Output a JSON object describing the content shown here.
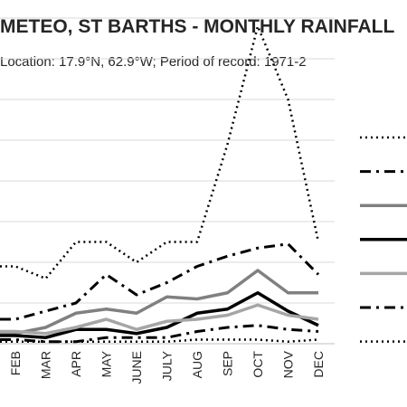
{
  "title": "METEO, ST BARTHS - MONTHLY RAINFALL",
  "subtitle": "Location: 17.9°N, 62.9°W; Period of record: 1971-2",
  "chart_data": {
    "type": "line",
    "categories": [
      "FEB",
      "MAR",
      "APR",
      "MAY",
      "JUNE",
      "JULY",
      "AUG",
      "SEP",
      "OCT",
      "NOV",
      "DEC"
    ],
    "grid": true,
    "series": [
      {
        "style": "dotted",
        "color": "#000000",
        "values": [
          190,
          160,
          250,
          250,
          200,
          250,
          250,
          490,
          780,
          600,
          250
        ]
      },
      {
        "style": "dash-dot",
        "color": "#000000",
        "values": [
          60,
          80,
          100,
          170,
          120,
          150,
          190,
          215,
          235,
          245,
          170
        ]
      },
      {
        "style": "solid",
        "color": "#808080",
        "values": [
          25,
          40,
          75,
          85,
          75,
          115,
          110,
          125,
          180,
          125,
          125
        ]
      },
      {
        "style": "solid-bold",
        "color": "#000000",
        "values": [
          20,
          15,
          35,
          35,
          25,
          40,
          75,
          85,
          125,
          80,
          45
        ]
      },
      {
        "style": "solid",
        "color": "#a6a6a6",
        "values": [
          30,
          25,
          40,
          60,
          35,
          55,
          60,
          70,
          95,
          70,
          60
        ]
      },
      {
        "style": "dash-dot",
        "color": "#000000",
        "values": [
          10,
          5,
          5,
          15,
          15,
          15,
          30,
          40,
          45,
          35,
          30
        ]
      },
      {
        "style": "dotted",
        "color": "#000000",
        "values": [
          5,
          5,
          5,
          5,
          5,
          5,
          10,
          10,
          10,
          5,
          10
        ]
      }
    ]
  }
}
